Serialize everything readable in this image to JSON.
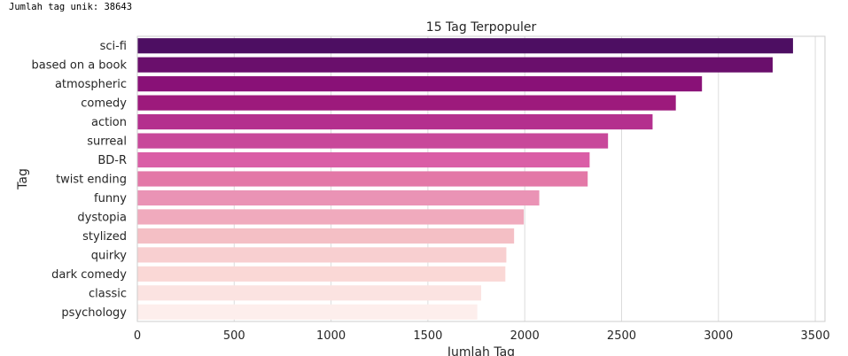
{
  "output": {
    "line": "Jumlah tag unik: 38643"
  },
  "chart_data": {
    "type": "bar",
    "orientation": "horizontal",
    "title": "15 Tag Terpopuler",
    "xlabel": "Jumlah Tag",
    "ylabel": "Tag",
    "xlim": [
      0,
      3550
    ],
    "xticks": [
      0,
      500,
      1000,
      1500,
      2000,
      2500,
      3000,
      3500
    ],
    "grid": true,
    "categories": [
      "sci-fi",
      "based on a book",
      "atmospheric",
      "comedy",
      "action",
      "surreal",
      "BD-R",
      "twist ending",
      "funny",
      "dystopia",
      "stylized",
      "quirky",
      "dark comedy",
      "classic",
      "psychology"
    ],
    "values": [
      3385,
      3280,
      2915,
      2780,
      2660,
      2430,
      2335,
      2325,
      2075,
      1995,
      1945,
      1905,
      1900,
      1775,
      1755
    ],
    "colors": [
      "#4d0e62",
      "#6a0f6c",
      "#891177",
      "#9d1a7c",
      "#b42f8e",
      "#c8489a",
      "#da5ea6",
      "#e378a7",
      "#ea93b5",
      "#f0aabd",
      "#f4bfc5",
      "#f8cfd0",
      "#fad8d6",
      "#fbe3e1",
      "#fdeeec"
    ]
  }
}
